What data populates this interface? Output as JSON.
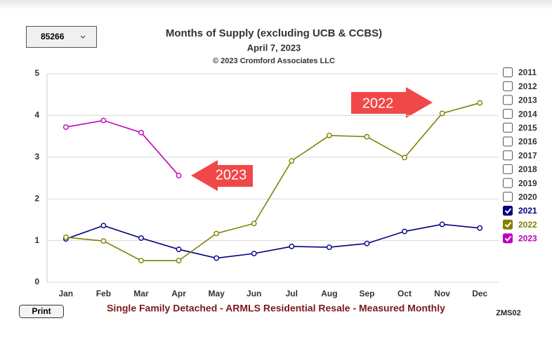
{
  "controls": {
    "area": "85266",
    "print": "Print",
    "code": "ZMS02"
  },
  "chart_data": {
    "type": "line",
    "title": "Months of Supply (excluding UCB & CCBS)",
    "subtitle": "April 7, 2023",
    "copyright": "© 2023 Cromford Associates LLC",
    "footer": "Single Family Detached - ARMLS Residential Resale - Measured Monthly",
    "categories": [
      "Jan",
      "Feb",
      "Mar",
      "Apr",
      "May",
      "Jun",
      "Jul",
      "Aug",
      "Sep",
      "Oct",
      "Nov",
      "Dec"
    ],
    "ylim": [
      0,
      5
    ],
    "yticks": [
      0,
      1,
      2,
      3,
      4,
      5
    ],
    "grid": true,
    "legend_items": [
      {
        "name": "2011",
        "checked": false
      },
      {
        "name": "2012",
        "checked": false
      },
      {
        "name": "2013",
        "checked": false
      },
      {
        "name": "2014",
        "checked": false
      },
      {
        "name": "2015",
        "checked": false
      },
      {
        "name": "2016",
        "checked": false
      },
      {
        "name": "2017",
        "checked": false
      },
      {
        "name": "2018",
        "checked": false
      },
      {
        "name": "2019",
        "checked": false
      },
      {
        "name": "2020",
        "checked": false
      }
    ],
    "series": [
      {
        "name": "2021",
        "color": "#000080",
        "values": [
          1.04,
          1.36,
          1.06,
          0.79,
          0.58,
          0.69,
          0.86,
          0.84,
          0.93,
          1.22,
          1.39,
          1.3
        ]
      },
      {
        "name": "2022",
        "color": "#808000",
        "values": [
          1.08,
          0.99,
          0.52,
          0.52,
          1.17,
          1.41,
          2.91,
          3.52,
          3.49,
          2.99,
          4.05,
          4.3
        ]
      },
      {
        "name": "2023",
        "color": "#c000c0",
        "values": [
          3.72,
          3.88,
          3.59,
          2.56,
          null,
          null,
          null,
          null,
          null,
          null,
          null,
          null
        ]
      }
    ],
    "annotations": [
      "2023",
      "2022"
    ]
  }
}
